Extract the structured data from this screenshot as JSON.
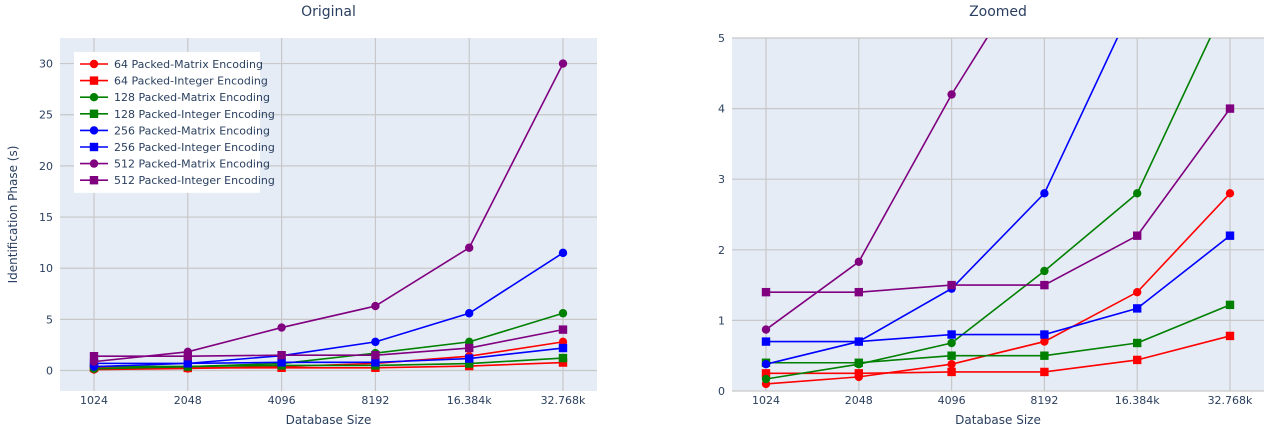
{
  "chart_data": [
    {
      "type": "line",
      "title": "Original",
      "xlabel": "Database Size",
      "ylabel": "Identification Phase (s)",
      "categories": [
        "1024",
        "2048",
        "4096",
        "8192",
        "16.384k",
        "32.768k"
      ],
      "ylim": [
        -2,
        32.5
      ],
      "yticks": [
        0,
        5,
        10,
        15,
        20,
        25,
        30
      ],
      "grid": true,
      "legend_position": "top-left",
      "series": [
        {
          "name": "64 Packed-Matrix Encoding",
          "color": "#ff0000",
          "marker": "circle",
          "values": [
            0.1,
            0.2,
            0.38,
            0.7,
            1.4,
            2.8
          ]
        },
        {
          "name": "64 Packed-Integer Encoding",
          "color": "#ff0000",
          "marker": "square",
          "values": [
            0.25,
            0.25,
            0.27,
            0.27,
            0.44,
            0.78
          ]
        },
        {
          "name": "128 Packed-Matrix Encoding",
          "color": "#008000",
          "marker": "circle",
          "values": [
            0.17,
            0.38,
            0.68,
            1.7,
            2.8,
            5.6
          ]
        },
        {
          "name": "128 Packed-Integer Encoding",
          "color": "#008000",
          "marker": "square",
          "values": [
            0.4,
            0.4,
            0.5,
            0.5,
            0.68,
            1.22
          ]
        },
        {
          "name": "256 Packed-Matrix Encoding",
          "color": "#0000ff",
          "marker": "circle",
          "values": [
            0.38,
            0.7,
            1.45,
            2.8,
            5.6,
            11.5
          ]
        },
        {
          "name": "256 Packed-Integer Encoding",
          "color": "#0000ff",
          "marker": "square",
          "values": [
            0.7,
            0.7,
            0.8,
            0.8,
            1.17,
            2.2
          ]
        },
        {
          "name": "512 Packed-Matrix Encoding",
          "color": "#800080",
          "marker": "circle",
          "values": [
            0.87,
            1.83,
            4.2,
            6.3,
            12.0,
            30.0
          ]
        },
        {
          "name": "512 Packed-Integer Encoding",
          "color": "#800080",
          "marker": "square",
          "values": [
            1.4,
            1.4,
            1.5,
            1.5,
            2.2,
            4.0
          ]
        }
      ]
    },
    {
      "type": "line",
      "title": "Zoomed",
      "xlabel": "Database Size",
      "ylabel": "",
      "categories": [
        "1024",
        "2048",
        "4096",
        "8192",
        "16.384k",
        "32.768k"
      ],
      "ylim": [
        0,
        5
      ],
      "yticks": [
        0,
        1,
        2,
        3,
        4,
        5
      ],
      "grid": true,
      "legend_position": "none",
      "series_ref": "same as Original"
    }
  ],
  "colors": {
    "plot_background": "#e5ecf6",
    "grid": "#c8c8c8",
    "text": "#2a3f5f"
  }
}
